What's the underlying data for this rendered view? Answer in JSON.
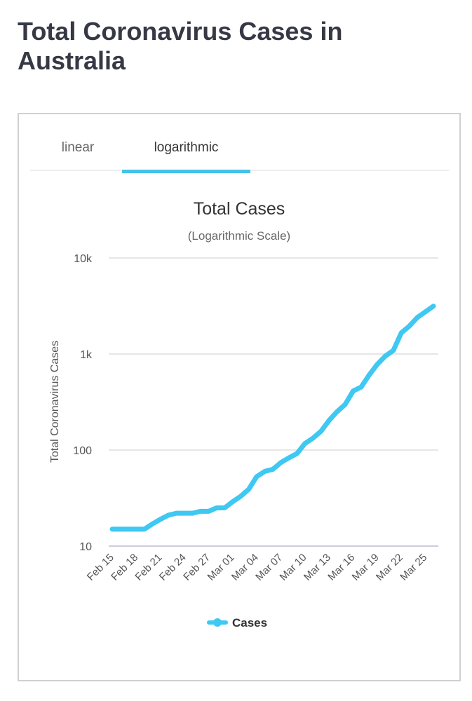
{
  "page": {
    "title": "Total Coronavirus Cases in Australia"
  },
  "tabs": [
    {
      "label": "linear",
      "active": false
    },
    {
      "label": "logarithmic",
      "active": true
    }
  ],
  "colors": {
    "series": "#3ec8f2",
    "tab_underline": "#44c3ea"
  },
  "chart_data": {
    "type": "line",
    "title": "Total Cases",
    "subtitle": "(Logarithmic Scale)",
    "ylabel": "Total Coronavirus Cases",
    "xlabel": "",
    "yscale": "log",
    "ylim": [
      10,
      10000
    ],
    "yticks": [
      {
        "value": 10000,
        "label": "10k"
      },
      {
        "value": 1000,
        "label": "1k"
      },
      {
        "value": 100,
        "label": "100"
      },
      {
        "value": 10,
        "label": "10"
      }
    ],
    "xtick_labels": [
      "Feb 15",
      "Feb 18",
      "Feb 21",
      "Feb 24",
      "Feb 27",
      "Mar 01",
      "Mar 04",
      "Mar 07",
      "Mar 10",
      "Mar 13",
      "Mar 16",
      "Mar 19",
      "Mar 22",
      "Mar 25"
    ],
    "xtick_step_days": 3,
    "x_start": "Feb 15",
    "x_end": "Mar 26",
    "legend": {
      "position": "bottom",
      "entries": [
        "Cases"
      ]
    },
    "series": [
      {
        "name": "Cases",
        "values": [
          15,
          15,
          15,
          15,
          15,
          17,
          19,
          21,
          22,
          22,
          22,
          23,
          23,
          25,
          25,
          29,
          33,
          39,
          53,
          60,
          63,
          74,
          83,
          92,
          117,
          133,
          157,
          203,
          251,
          298,
          412,
          453,
          605,
          780,
          950,
          1090,
          1660,
          1950,
          2400,
          2750,
          3150
        ]
      }
    ]
  }
}
